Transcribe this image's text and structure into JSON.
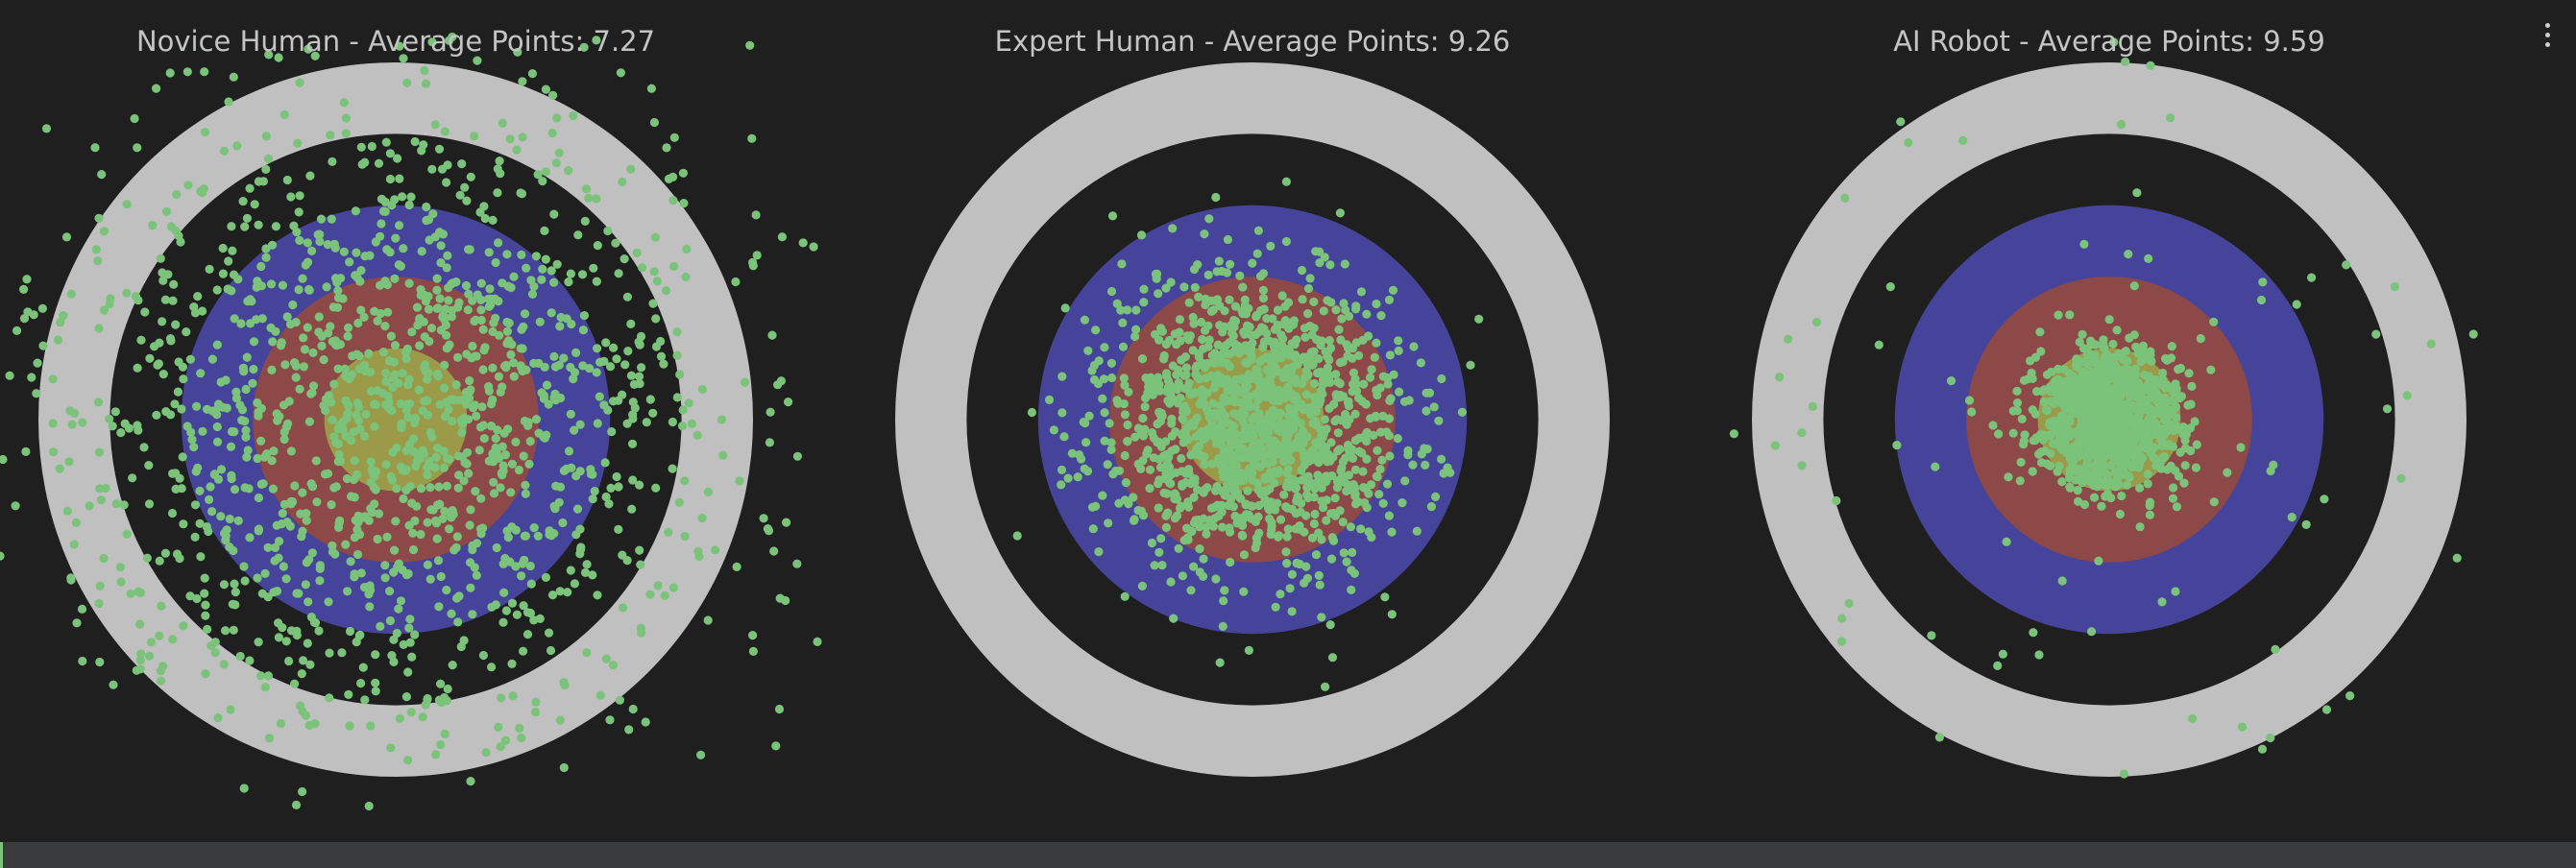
{
  "colors": {
    "background": "#1f1f20",
    "ring_outer": "#c0c0c0",
    "ring_black": "#1f1f20",
    "ring_blue": "#45449a",
    "ring_red": "#8d4848",
    "ring_yellow": "#9a9a48",
    "shot": "#7bc27b",
    "title": "#c4c4c4"
  },
  "menu": {
    "icon": "kebab-menu-icon"
  },
  "chart_data": [
    {
      "type": "scatter",
      "title": "Novice Human - Average Points: 7.27",
      "rings": [
        "white",
        "black",
        "blue",
        "red",
        "gold"
      ],
      "shot_spread": 0.46,
      "shot_count": 1450,
      "seed": 11
    },
    {
      "type": "scatter",
      "title": "Expert Human - Average Points: 9.26",
      "rings": [
        "white",
        "black",
        "blue",
        "red",
        "gold"
      ],
      "shot_spread": 0.21,
      "shot_count": 1300,
      "seed": 23
    },
    {
      "type": "scatter",
      "title": "AI Robot - Average Points: 9.59",
      "rings": [
        "white",
        "black",
        "blue",
        "red",
        "gold"
      ],
      "shot_spread": 0.1,
      "shot_count": 900,
      "outlier_count": 75,
      "seed": 37
    }
  ]
}
